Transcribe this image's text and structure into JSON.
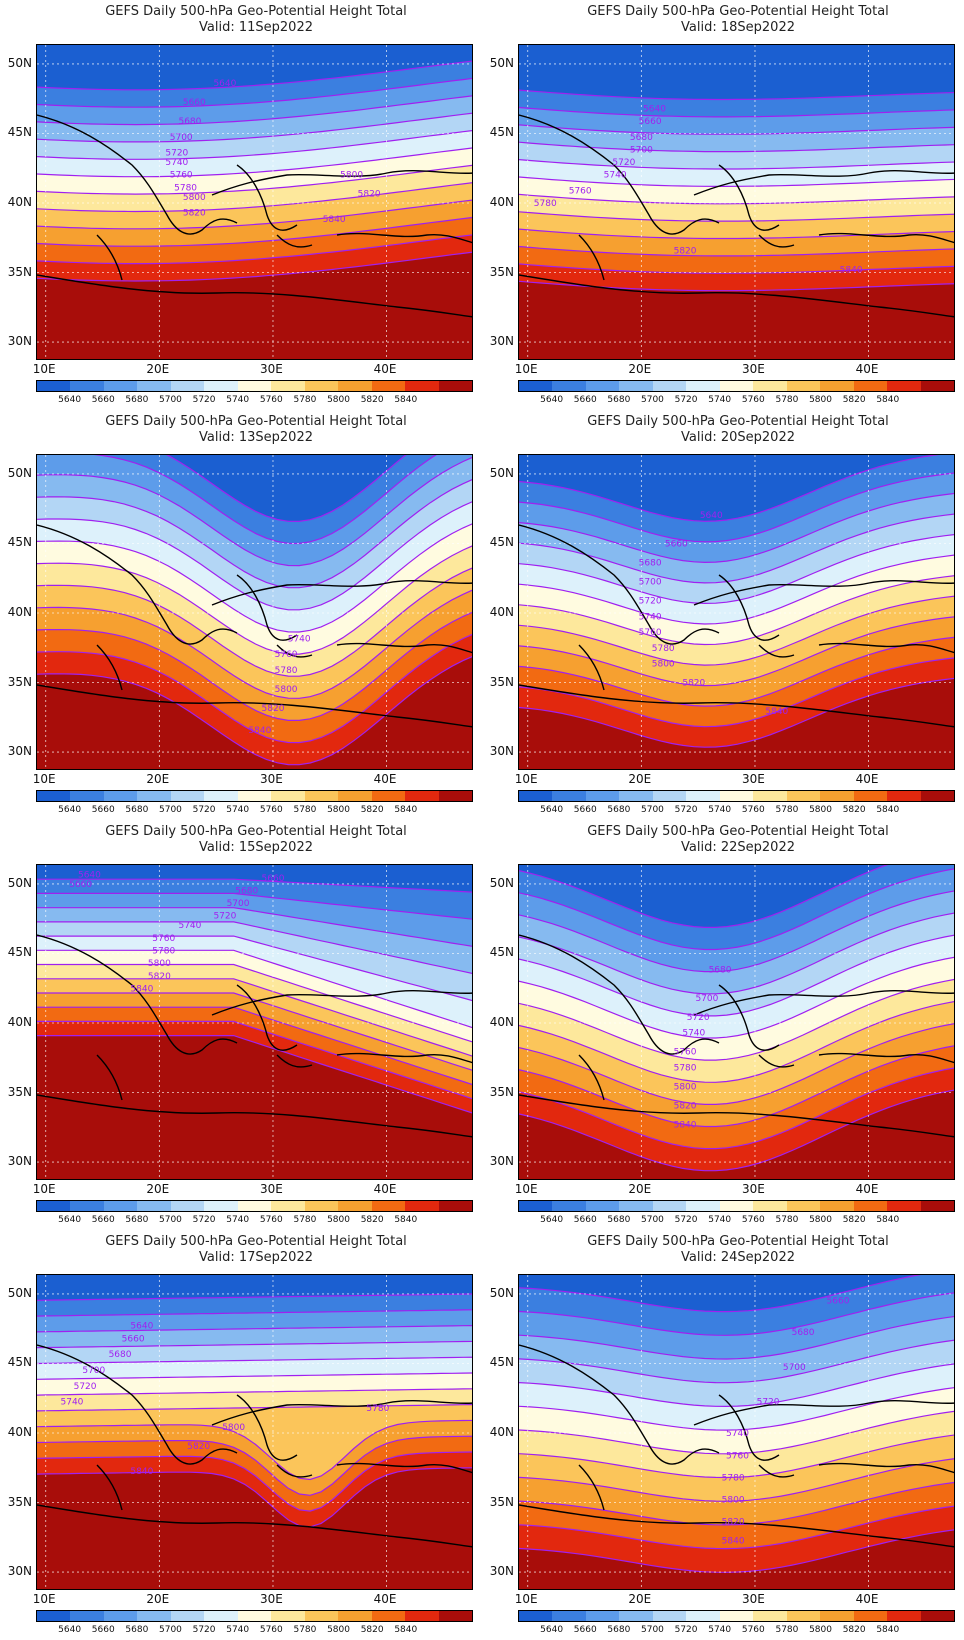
{
  "panels": [
    {
      "title": "GEFS Daily 500-hPa Geo-Potential Height Total",
      "valid": "Valid: 11Sep2022",
      "labels": [
        [
          "5640",
          0.43,
          0.13
        ],
        [
          "5660",
          0.36,
          0.19
        ],
        [
          "5680",
          0.35,
          0.25
        ],
        [
          "5700",
          0.33,
          0.3
        ],
        [
          "5720",
          0.32,
          0.35
        ],
        [
          "5740",
          0.32,
          0.38
        ],
        [
          "5760",
          0.33,
          0.42
        ],
        [
          "5780",
          0.34,
          0.46
        ],
        [
          "5800",
          0.36,
          0.49
        ],
        [
          "5800",
          0.72,
          0.42
        ],
        [
          "5820",
          0.36,
          0.54
        ],
        [
          "5820",
          0.76,
          0.48
        ],
        [
          "5840",
          0.68,
          0.56
        ]
      ]
    },
    {
      "title": "GEFS Daily 500-hPa Geo-Potential Height Total",
      "valid": "Valid: 18Sep2022",
      "labels": [
        [
          "5640",
          0.31,
          0.21
        ],
        [
          "5660",
          0.3,
          0.25
        ],
        [
          "5680",
          0.28,
          0.3
        ],
        [
          "5700",
          0.28,
          0.34
        ],
        [
          "5720",
          0.24,
          0.38
        ],
        [
          "5740",
          0.22,
          0.42
        ],
        [
          "5760",
          0.14,
          0.47
        ],
        [
          "5780",
          0.06,
          0.51
        ],
        [
          "5820",
          0.38,
          0.66
        ],
        [
          "5840",
          0.76,
          0.72
        ]
      ]
    },
    {
      "title": "GEFS Daily 500-hPa Geo-Potential Height Total",
      "valid": "Valid: 13Sep2022",
      "labels": [
        [
          "5740",
          0.6,
          0.59
        ],
        [
          "5760",
          0.57,
          0.64
        ],
        [
          "5780",
          0.57,
          0.69
        ],
        [
          "5800",
          0.57,
          0.75
        ],
        [
          "5820",
          0.54,
          0.81
        ],
        [
          "5840",
          0.51,
          0.88
        ]
      ]
    },
    {
      "title": "GEFS Daily 500-hPa Geo-Potential Height Total",
      "valid": "Valid: 20Sep2022",
      "labels": [
        [
          "5640",
          0.44,
          0.2
        ],
        [
          "5660",
          0.36,
          0.29
        ],
        [
          "5680",
          0.3,
          0.35
        ],
        [
          "5700",
          0.3,
          0.41
        ],
        [
          "5720",
          0.3,
          0.47
        ],
        [
          "5740",
          0.3,
          0.52
        ],
        [
          "5760",
          0.3,
          0.57
        ],
        [
          "5780",
          0.33,
          0.62
        ],
        [
          "5800",
          0.33,
          0.67
        ],
        [
          "5820",
          0.4,
          0.73
        ],
        [
          "5840",
          0.59,
          0.82
        ]
      ]
    },
    {
      "title": "GEFS Daily 500-hPa Geo-Potential Height Total",
      "valid": "Valid: 15Sep2022",
      "labels": [
        [
          "5660",
          0.54,
          0.05
        ],
        [
          "5640",
          0.12,
          0.04
        ],
        [
          "5660",
          0.1,
          0.07
        ],
        [
          "5680",
          0.48,
          0.09
        ],
        [
          "5700",
          0.46,
          0.13
        ],
        [
          "5720",
          0.43,
          0.17
        ],
        [
          "5740",
          0.35,
          0.2
        ],
        [
          "5760",
          0.29,
          0.24
        ],
        [
          "5780",
          0.29,
          0.28
        ],
        [
          "5800",
          0.28,
          0.32
        ],
        [
          "5820",
          0.28,
          0.36
        ],
        [
          "5840",
          0.24,
          0.4
        ]
      ]
    },
    {
      "title": "GEFS Daily 500-hPa Geo-Potential Height Total",
      "valid": "Valid: 22Sep2022",
      "labels": [
        [
          "5680",
          0.46,
          0.34
        ],
        [
          "5700",
          0.43,
          0.43
        ],
        [
          "5720",
          0.41,
          0.49
        ],
        [
          "5740",
          0.4,
          0.54
        ],
        [
          "5760",
          0.38,
          0.6
        ],
        [
          "5780",
          0.38,
          0.65
        ],
        [
          "5800",
          0.38,
          0.71
        ],
        [
          "5820",
          0.38,
          0.77
        ],
        [
          "5840",
          0.38,
          0.83
        ]
      ]
    },
    {
      "title": "GEFS Daily 500-hPa Geo-Potential Height Total",
      "valid": "Valid: 17Sep2022",
      "labels": [
        [
          "5640",
          0.24,
          0.17
        ],
        [
          "5660",
          0.22,
          0.21
        ],
        [
          "5680",
          0.19,
          0.26
        ],
        [
          "5700",
          0.13,
          0.31
        ],
        [
          "5720",
          0.11,
          0.36
        ],
        [
          "5740",
          0.08,
          0.41
        ],
        [
          "5780",
          0.78,
          0.43
        ],
        [
          "5800",
          0.45,
          0.49
        ],
        [
          "5820",
          0.37,
          0.55
        ],
        [
          "5840",
          0.24,
          0.63
        ]
      ]
    },
    {
      "title": "GEFS Daily 500-hPa Geo-Potential Height Total",
      "valid": "Valid: 24Sep2022",
      "labels": [
        [
          "5660",
          0.73,
          0.09
        ],
        [
          "5680",
          0.65,
          0.19
        ],
        [
          "5700",
          0.63,
          0.3
        ],
        [
          "5720",
          0.57,
          0.41
        ],
        [
          "5740",
          0.5,
          0.51
        ],
        [
          "5760",
          0.5,
          0.58
        ],
        [
          "5780",
          0.49,
          0.65
        ],
        [
          "5800",
          0.49,
          0.72
        ],
        [
          "5820",
          0.49,
          0.79
        ],
        [
          "5840",
          0.49,
          0.85
        ]
      ]
    }
  ],
  "lat_labels": [
    "50N",
    "45N",
    "40N",
    "35N",
    "30N"
  ],
  "lon_labels": [
    "10E",
    "20E",
    "30E",
    "40E"
  ],
  "colorbar": {
    "colors": [
      "#1b5fd1",
      "#3b7fe0",
      "#5d9cea",
      "#86baf0",
      "#b3d6f5",
      "#ddf1fb",
      "#fffbe0",
      "#fde89c",
      "#fbc55a",
      "#f6a030",
      "#f26a12",
      "#e2280e",
      "#a80d0a"
    ],
    "labels": [
      "5640",
      "5660",
      "5680",
      "5700",
      "5720",
      "5740",
      "5760",
      "5780",
      "5800",
      "5820",
      "5840"
    ]
  },
  "contour_color": "#a020f0"
}
